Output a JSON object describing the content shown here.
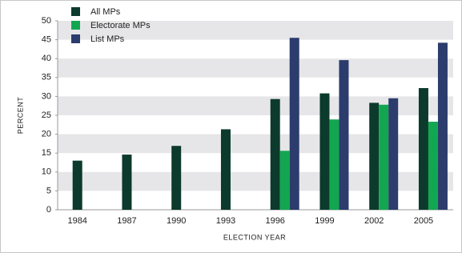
{
  "chart_data": {
    "type": "bar",
    "x_label": "ELECTION YEAR",
    "y_label": "PERCENT",
    "categories": [
      "1984",
      "1987",
      "1990",
      "1993",
      "1996",
      "1999",
      "2002",
      "2005"
    ],
    "series": [
      {
        "name": "All MPs",
        "color": "#0c3a2c",
        "values": [
          13,
          14.6,
          16.9,
          21.3,
          29.3,
          30.8,
          28.3,
          32.2
        ]
      },
      {
        "name": "Electorate MPs",
        "color": "#13a650",
        "values": [
          null,
          null,
          null,
          null,
          15.6,
          23.9,
          27.8,
          23.3
        ]
      },
      {
        "name": "List MPs",
        "color": "#2b3c6d",
        "values": [
          null,
          null,
          null,
          null,
          45.5,
          39.6,
          29.5,
          44.2
        ]
      }
    ],
    "ylim": [
      0,
      50
    ],
    "yticks": [
      0,
      5,
      10,
      15,
      20,
      25,
      30,
      35,
      40,
      45,
      50
    ],
    "grid": "bands",
    "legend": "top-left"
  }
}
